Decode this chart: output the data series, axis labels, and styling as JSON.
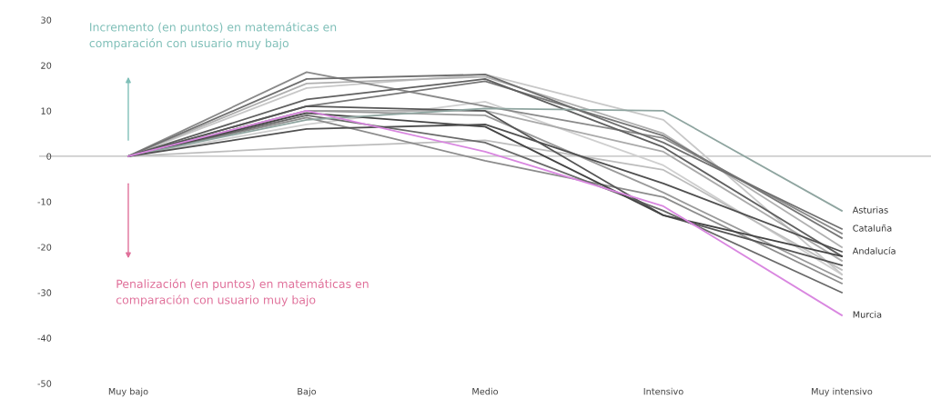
{
  "chart_data": {
    "type": "line",
    "categories": [
      "Muy bajo",
      "Bajo",
      "Medio",
      "Intensivo",
      "Muy intensivo"
    ],
    "ylim": [
      -50,
      30
    ],
    "yticks": [
      -50,
      -40,
      -30,
      -20,
      -10,
      0,
      10,
      20,
      30
    ],
    "grid": false,
    "legend": false,
    "marker": "none",
    "line_style": "solid",
    "ref_lines": [
      {
        "axis": "y",
        "value": 0,
        "color": "#bbbbbb"
      }
    ],
    "annotations": [
      "Incremento (en puntos) en matemáticas en\ncomparación con usuario muy bajo",
      "Penalización (en puntos) en matemáticas en\ncomparación con usuario muy bajo"
    ],
    "series": [
      {
        "color": "#cfcfcf",
        "values": [
          0,
          7,
          12,
          -2,
          -26
        ]
      },
      {
        "color": "#c8c8c8",
        "values": [
          0,
          15,
          18,
          8,
          -26
        ]
      },
      {
        "color": "#bdbdbd",
        "values": [
          0,
          2,
          3.5,
          -3,
          -25
        ]
      },
      {
        "color": "#b0b0b0",
        "values": [
          0,
          16,
          17.5,
          5,
          -20
        ]
      },
      {
        "color": "#aaaaaa",
        "values": [
          0,
          10,
          10,
          1,
          -23
        ]
      },
      {
        "color": "#9a9a9a",
        "values": [
          0,
          10,
          9,
          -8,
          -27
        ]
      },
      {
        "color": "#8c8c8c",
        "values": [
          0,
          8.5,
          -1,
          -9,
          -28
        ]
      },
      {
        "color": "#8a8a8a",
        "values": [
          0,
          18.5,
          11,
          4,
          -17
        ]
      },
      {
        "color": "#777777",
        "values": [
          0,
          11,
          16.5,
          4.5,
          -18
        ]
      },
      {
        "color": "#6a6a6a",
        "values": [
          0,
          9,
          3,
          -12,
          -30
        ]
      },
      {
        "color": "#606060",
        "values": [
          0,
          12.5,
          17,
          2,
          -22
        ]
      },
      {
        "color": "#555555",
        "values": [
          0,
          11,
          10,
          -13,
          -24
        ]
      },
      {
        "color": "#444444",
        "values": [
          0,
          9.5,
          6.5,
          -13,
          -22
        ]
      },
      {
        "name": "Asturias",
        "color": "#8fa5a0",
        "values": [
          0,
          8,
          10.5,
          10,
          -12
        ]
      },
      {
        "name": "Cataluña",
        "color": "#707070",
        "values": [
          0,
          17,
          18,
          3,
          -16
        ]
      },
      {
        "name": "Andalucía",
        "color": "#505050",
        "values": [
          0,
          6,
          7,
          -6,
          -21
        ]
      },
      {
        "name": "Murcia",
        "color": "#d987e0",
        "values": [
          0,
          10,
          1,
          -11,
          -35
        ]
      }
    ]
  }
}
